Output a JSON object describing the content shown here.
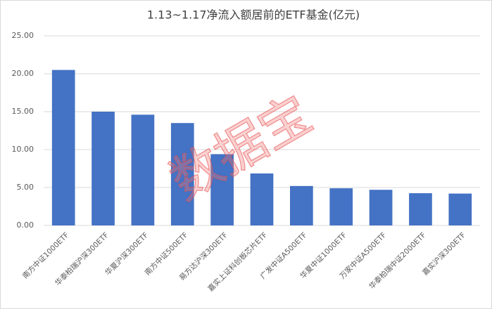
{
  "chart_data": {
    "type": "bar",
    "title": "1.13~1.17净流入额居前的ETF基金(亿元)",
    "categories": [
      "南方中证1000ETF",
      "华泰柏瑞沪深300ETF",
      "华夏沪深300ETF",
      "南方中证500ETF",
      "易方达沪深300ETF",
      "嘉实上证科创板芯片ETF",
      "广发中证A500ETF",
      "华夏中证1000ETF",
      "万家中证A500ETF",
      "华泰柏瑞中证2000ETF",
      "嘉实沪深300ETF"
    ],
    "values": [
      20.5,
      15.0,
      14.6,
      13.5,
      9.4,
      6.85,
      5.2,
      4.9,
      4.7,
      4.25,
      4.2
    ],
    "color": "#4472c4",
    "ylim": [
      0,
      25
    ],
    "yticks": [
      {
        "value": 0,
        "label": "0.00"
      },
      {
        "value": 5,
        "label": "5.00"
      },
      {
        "value": 10,
        "label": "10.00"
      },
      {
        "value": 15,
        "label": "15.00"
      },
      {
        "value": 20,
        "label": "20.00"
      },
      {
        "value": 25,
        "label": "25.00"
      }
    ],
    "grid": true,
    "watermark": "数据宝"
  }
}
